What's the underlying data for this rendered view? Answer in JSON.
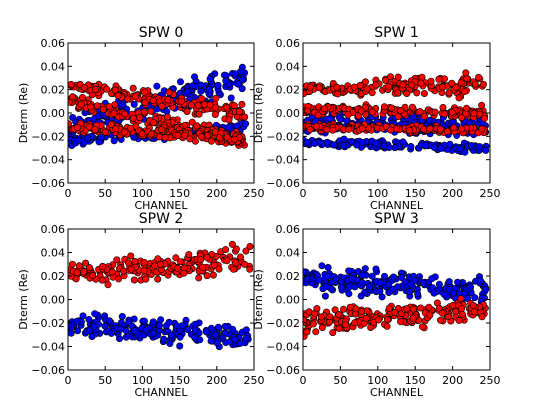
{
  "chart_data": [
    {
      "type": "scatter",
      "title": "SPW 0",
      "xlabel": "CHANNEL",
      "ylabel": "Dterm (Re)",
      "xlim": [
        0,
        250
      ],
      "ylim": [
        -0.06,
        0.06
      ],
      "xticks": [
        "0",
        "50",
        "100",
        "150",
        "200",
        "250"
      ],
      "yticks": [
        "0.06",
        "0.04",
        "0.02",
        "0.00",
        "−0.02",
        "−0.04",
        "−0.06"
      ],
      "series": [
        {
          "color": "#0000ff",
          "bands": [
            {
              "x": [
                0,
                240
              ],
              "center": [
                -0.012,
                0.03
              ],
              "half_width": [
                0.017,
                0.018
              ]
            },
            {
              "x": [
                0,
                240
              ],
              "center": [
                -0.024,
                -0.012
              ],
              "half_width": [
                0.006,
                0.006
              ]
            }
          ]
        },
        {
          "color": "#ff0000",
          "bands": [
            {
              "x": [
                0,
                240
              ],
              "center": [
                0.024,
                0.0
              ],
              "half_width": [
                0.006,
                0.012
              ]
            },
            {
              "x": [
                0,
                240
              ],
              "center": [
                0.01,
                -0.025
              ],
              "half_width": [
                0.008,
                0.01
              ]
            },
            {
              "x": [
                0,
                240
              ],
              "center": [
                -0.012,
                -0.022
              ],
              "half_width": [
                0.006,
                0.008
              ]
            }
          ]
        }
      ]
    },
    {
      "type": "scatter",
      "title": "SPW 1",
      "xlabel": "CHANNEL",
      "ylabel": "Dterm (Re)",
      "xlim": [
        0,
        250
      ],
      "ylim": [
        -0.06,
        0.06
      ],
      "xticks": [
        "0",
        "50",
        "100",
        "150",
        "200",
        "250"
      ],
      "yticks": [
        "0.06",
        "0.04",
        "0.02",
        "0.00",
        "−0.02",
        "−0.04",
        "−0.06"
      ],
      "series": [
        {
          "color": "#0000ff",
          "bands": [
            {
              "x": [
                0,
                245
              ],
              "center": [
                -0.008,
                -0.012
              ],
              "half_width": [
                0.012,
                0.013
              ]
            },
            {
              "x": [
                0,
                245
              ],
              "center": [
                -0.025,
                -0.03
              ],
              "half_width": [
                0.005,
                0.006
              ]
            }
          ]
        },
        {
          "color": "#ff0000",
          "bands": [
            {
              "x": [
                0,
                245
              ],
              "center": [
                0.02,
                0.025
              ],
              "half_width": [
                0.008,
                0.014
              ]
            },
            {
              "x": [
                0,
                245
              ],
              "center": [
                0.003,
                0.0
              ],
              "half_width": [
                0.006,
                0.008
              ]
            },
            {
              "x": [
                0,
                245
              ],
              "center": [
                -0.012,
                -0.015
              ],
              "half_width": [
                0.004,
                0.004
              ]
            }
          ]
        }
      ]
    },
    {
      "type": "scatter",
      "title": "SPW 2",
      "xlabel": "CHANNEL",
      "ylabel": "Dterm (Re)",
      "xlim": [
        0,
        250
      ],
      "ylim": [
        -0.06,
        0.06
      ],
      "xticks": [
        "0",
        "50",
        "100",
        "150",
        "200",
        "250"
      ],
      "yticks": [
        "0.06",
        "0.04",
        "0.02",
        "0.00",
        "−0.02",
        "−0.04",
        "−0.06"
      ],
      "series": [
        {
          "color": "#0000ff",
          "bands": [
            {
              "x": [
                0,
                245
              ],
              "center": [
                -0.02,
                -0.032
              ],
              "half_width": [
                0.014,
                0.014
              ]
            }
          ]
        },
        {
          "color": "#ff0000",
          "bands": [
            {
              "x": [
                0,
                245
              ],
              "center": [
                0.02,
                0.034
              ],
              "half_width": [
                0.012,
                0.018
              ]
            }
          ]
        }
      ]
    },
    {
      "type": "scatter",
      "title": "SPW 3",
      "xlabel": "CHANNEL",
      "ylabel": "Dterm (Re)",
      "xlim": [
        0,
        250
      ],
      "ylim": [
        -0.06,
        0.06
      ],
      "xticks": [
        "0",
        "50",
        "100",
        "150",
        "200",
        "250"
      ],
      "yticks": [
        "0.06",
        "0.04",
        "0.02",
        "0.00",
        "−0.02",
        "−0.04",
        "−0.06"
      ],
      "series": [
        {
          "color": "#0000ff",
          "bands": [
            {
              "x": [
                0,
                245
              ],
              "center": [
                0.018,
                0.008
              ],
              "half_width": [
                0.018,
                0.014
              ]
            }
          ]
        },
        {
          "color": "#ff0000",
          "bands": [
            {
              "x": [
                0,
                245
              ],
              "center": [
                -0.02,
                -0.008
              ],
              "half_width": [
                0.018,
                0.012
              ]
            }
          ]
        }
      ]
    }
  ]
}
